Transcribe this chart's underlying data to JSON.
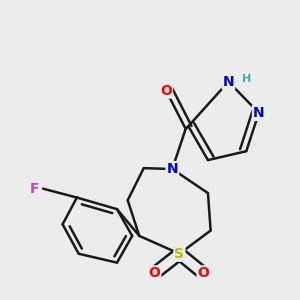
{
  "background_color": "#ececec",
  "bond_color": "#1a1a1a",
  "bond_width": 1.8,
  "atom_colors": {
    "O": "#ff0000",
    "N": "#0000dd",
    "S": "#bbbb00",
    "F": "#cc44cc",
    "H": "#44aaaa",
    "C": "#1a1a1a"
  },
  "figsize": [
    3.0,
    3.0
  ],
  "dpi": 100
}
